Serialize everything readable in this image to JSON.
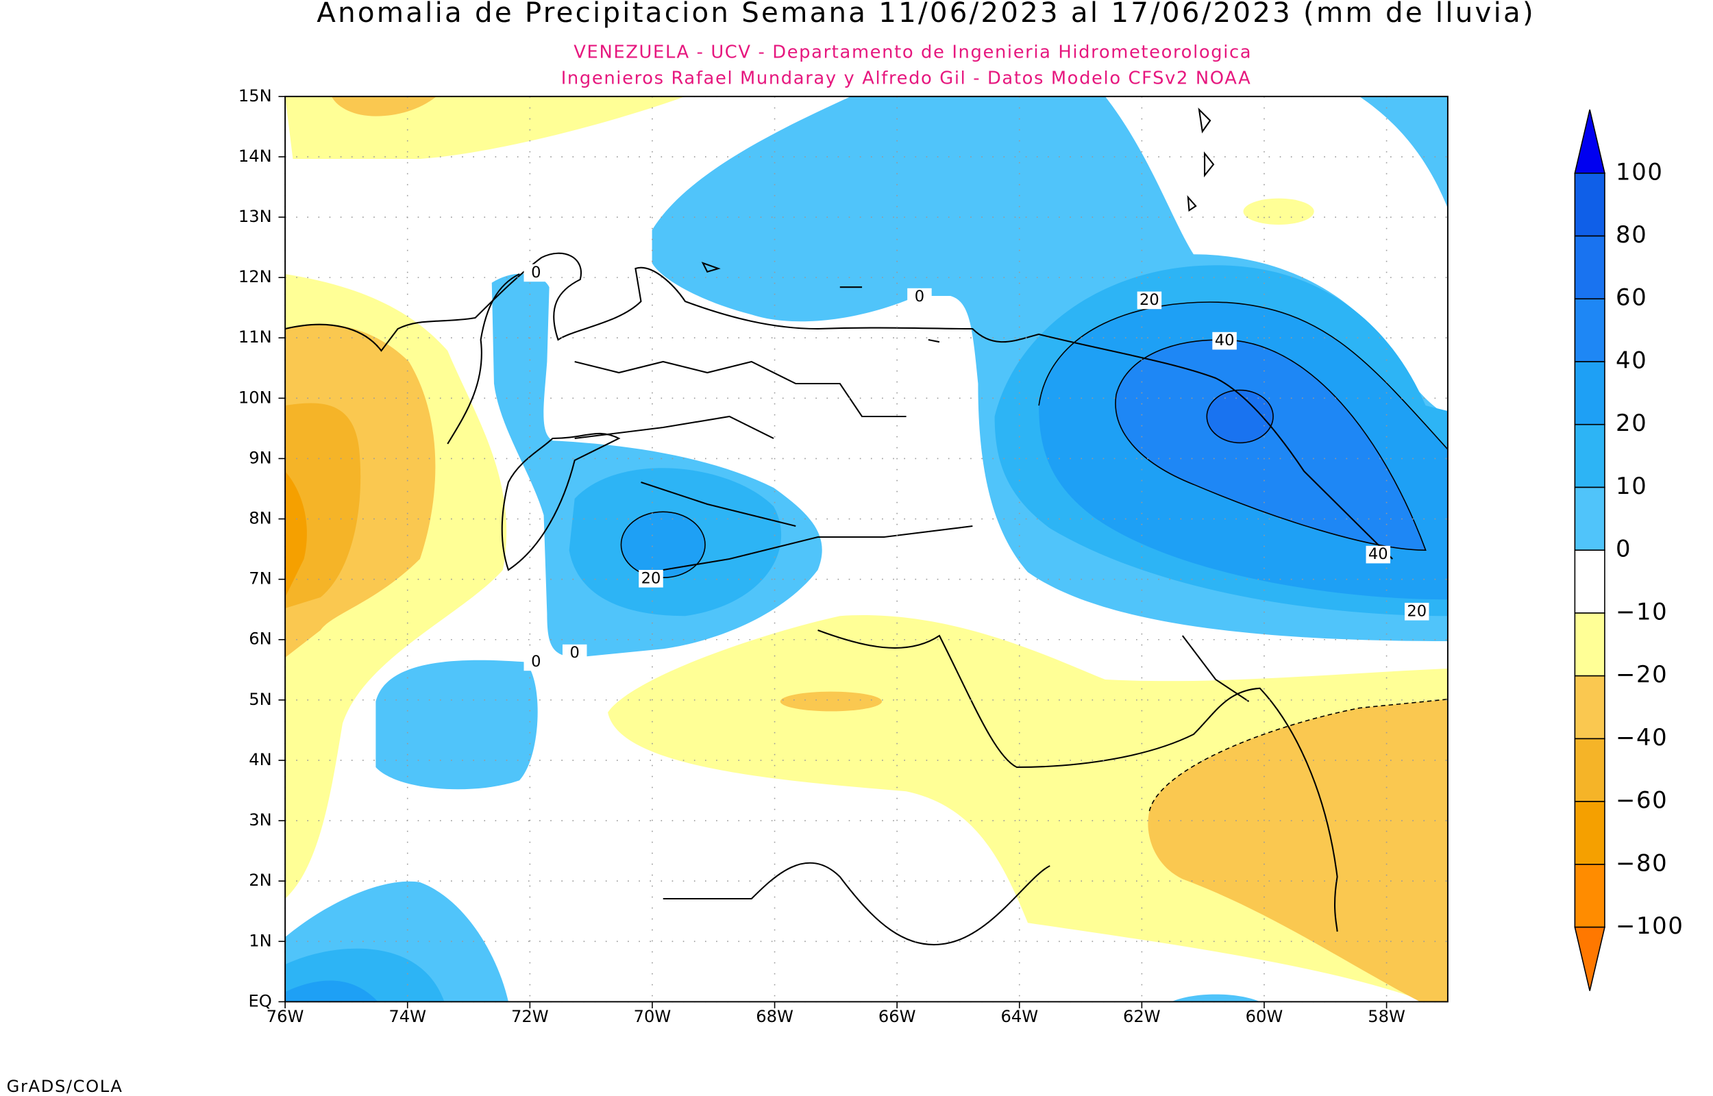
{
  "header": {
    "title": "Anomalia de Precipitacion Semana 11/06/2023 al 17/06/2023 (mm de lluvia)",
    "subtitle_lines": [
      "VENEZUELA - UCV - Departamento de Ingenieria Hidrometeorologica",
      "Ingenieros Rafael Mundaray y Alfredo Gil - Datos Modelo CFSv2 NOAA"
    ]
  },
  "map": {
    "lat_labels": [
      "15N",
      "14N",
      "13N",
      "12N",
      "11N",
      "10N",
      "9N",
      "8N",
      "7N",
      "6N",
      "5N",
      "4N",
      "3N",
      "2N",
      "1N",
      "EQ"
    ],
    "lon_labels": [
      "76W",
      "74W",
      "72W",
      "70W",
      "68W",
      "66W",
      "64W",
      "62W",
      "60W",
      "58W"
    ],
    "contour_labels": [
      "0",
      "0",
      "0",
      "0",
      "20",
      "20",
      "20",
      "40",
      "40"
    ]
  },
  "colorbar": {
    "labels": [
      "100",
      "80",
      "60",
      "40",
      "20",
      "10",
      "0",
      "−10",
      "−20",
      "−40",
      "−60",
      "−80",
      "−100"
    ],
    "colors": [
      "#0000f0",
      "#0f5fe8",
      "#1973f0",
      "#1e87f5",
      "#1ea0f5",
      "#2db4f5",
      "#50c4fa",
      "#ffffff",
      "#ffff96",
      "#fac850",
      "#f5b428",
      "#f5a000",
      "#ff8c00",
      "#ff7800"
    ]
  },
  "footer": "GrADS/COLA"
}
